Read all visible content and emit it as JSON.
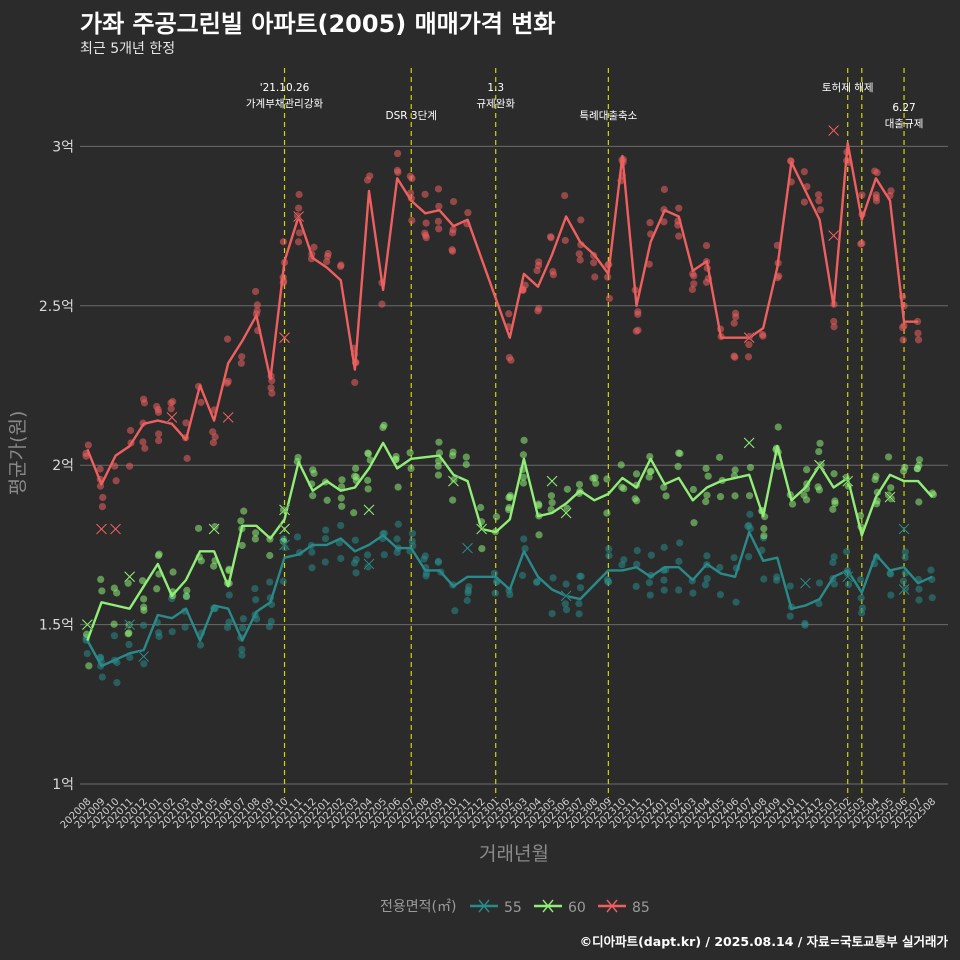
{
  "header": {
    "title": "가좌 주공그린빌 아파트(2005) 매매가격 변화",
    "subtitle": "최근 5개년 한정"
  },
  "caption": "©디아파트(dapt.kr) / 2025.08.14 / 자료=국토교통부 실거래가",
  "colors": {
    "background": "#2b2b2b",
    "grid": "#6b6b6b",
    "event_line": "#d4d400",
    "s55": "#2a8a8a",
    "s60": "#90ee78",
    "s85": "#ee6060"
  },
  "chart_data": {
    "type": "line",
    "xlabel": "거래년월",
    "ylabel": "평균가(원)",
    "ylim": [
      0.95,
      3.3
    ],
    "y_ticks": [
      {
        "value": 1.0,
        "label": "1억"
      },
      {
        "value": 1.5,
        "label": "1.5억"
      },
      {
        "value": 2.0,
        "label": "2억"
      },
      {
        "value": 2.5,
        "label": "2.5억"
      },
      {
        "value": 3.0,
        "label": "3억"
      }
    ],
    "grid": true,
    "legend": {
      "title": "전용면적(㎡)",
      "position": "bottom",
      "entries": [
        "55",
        "60",
        "85"
      ]
    },
    "categories": [
      "202008",
      "202009",
      "202010",
      "202011",
      "202012",
      "202101",
      "202102",
      "202103",
      "202104",
      "202105",
      "202106",
      "202107",
      "202108",
      "202109",
      "202110",
      "202111",
      "202112",
      "202201",
      "202202",
      "202203",
      "202204",
      "202205",
      "202206",
      "202207",
      "202208",
      "202209",
      "202210",
      "202211",
      "202212",
      "202301",
      "202302",
      "202303",
      "202304",
      "202305",
      "202306",
      "202307",
      "202308",
      "202309",
      "202310",
      "202311",
      "202312",
      "202401",
      "202402",
      "202403",
      "202404",
      "202405",
      "202406",
      "202407",
      "202408",
      "202409",
      "202410",
      "202411",
      "202412",
      "202501",
      "202502",
      "202503",
      "202504",
      "202505",
      "202506",
      "202507",
      "202508"
    ],
    "events": [
      {
        "x": 14,
        "label": "'21.10.26\n가계부채관리강화",
        "row": 0
      },
      {
        "x": 23,
        "label": "DSR 3단계",
        "row": 1
      },
      {
        "x": 29,
        "label": "1.3\n규제완화",
        "row": 0
      },
      {
        "x": 37,
        "label": "특례대출축소",
        "row": 1
      },
      {
        "x": 54,
        "label": "토허제 해제",
        "row": 0
      },
      {
        "x": 55,
        "label": "",
        "row": 0
      },
      {
        "x": 58,
        "label": "6.27\n대출규제",
        "row": 2
      }
    ],
    "series": [
      {
        "name": "55",
        "x": [
          0,
          1,
          2,
          3,
          4,
          5,
          6,
          7,
          8,
          9,
          10,
          11,
          12,
          13,
          14,
          15,
          16,
          17,
          18,
          19,
          20,
          21,
          22,
          23,
          24,
          25,
          26,
          27,
          29,
          30,
          31,
          32,
          33,
          34,
          35,
          37,
          38,
          39,
          40,
          41,
          42,
          43,
          44,
          45,
          46,
          47,
          48,
          49,
          50,
          51,
          52,
          53,
          54,
          55,
          56,
          57,
          58,
          59,
          60
        ],
        "values": [
          1.45,
          1.37,
          1.39,
          1.41,
          1.42,
          1.53,
          1.52,
          1.55,
          1.45,
          1.56,
          1.55,
          1.45,
          1.54,
          1.57,
          1.71,
          1.72,
          1.75,
          1.75,
          1.77,
          1.73,
          1.75,
          1.78,
          1.74,
          1.74,
          1.67,
          1.67,
          1.62,
          1.65,
          1.65,
          1.61,
          1.73,
          1.65,
          1.61,
          1.59,
          1.58,
          1.67,
          1.67,
          1.68,
          1.65,
          1.68,
          1.68,
          1.64,
          1.69,
          1.66,
          1.65,
          1.79,
          1.7,
          1.71,
          1.55,
          1.56,
          1.58,
          1.65,
          1.67,
          1.6,
          1.72,
          1.67,
          1.68,
          1.63,
          1.65
        ],
        "markers": [
          {
            "x": 0,
            "y": 1.5
          },
          {
            "x": 3,
            "y": 1.5
          },
          {
            "x": 4,
            "y": 1.4
          },
          {
            "x": 14,
            "y": 1.75
          },
          {
            "x": 20,
            "y": 1.69
          },
          {
            "x": 27,
            "y": 1.74
          },
          {
            "x": 34,
            "y": 1.59
          },
          {
            "x": 51,
            "y": 1.63
          },
          {
            "x": 54,
            "y": 1.65
          },
          {
            "x": 58,
            "y": 1.61
          },
          {
            "x": 58,
            "y": 1.8
          }
        ]
      },
      {
        "name": "60",
        "x": [
          0,
          1,
          2,
          3,
          4,
          5,
          6,
          7,
          8,
          9,
          10,
          11,
          12,
          13,
          14,
          15,
          16,
          17,
          18,
          19,
          20,
          21,
          22,
          23,
          25,
          26,
          27,
          28,
          29,
          30,
          31,
          32,
          33,
          34,
          35,
          36,
          37,
          38,
          39,
          40,
          41,
          42,
          43,
          44,
          45,
          46,
          47,
          48,
          49,
          50,
          51,
          52,
          53,
          54,
          55,
          56,
          57,
          58,
          59,
          60
        ],
        "values": [
          1.45,
          1.57,
          1.56,
          1.55,
          1.62,
          1.69,
          1.59,
          1.64,
          1.73,
          1.73,
          1.62,
          1.81,
          1.81,
          1.77,
          1.83,
          2.01,
          1.92,
          1.95,
          1.92,
          1.93,
          1.99,
          2.07,
          1.99,
          2.02,
          2.03,
          1.97,
          1.95,
          1.8,
          1.79,
          1.83,
          2.02,
          1.84,
          1.85,
          1.88,
          1.92,
          1.89,
          1.91,
          1.96,
          1.93,
          2.02,
          1.94,
          1.96,
          1.89,
          1.93,
          1.95,
          1.96,
          1.97,
          1.84,
          2.06,
          1.89,
          1.93,
          2.0,
          1.93,
          1.96,
          1.78,
          1.9,
          1.97,
          1.95,
          1.95,
          1.9
        ],
        "markers": [
          {
            "x": 0,
            "y": 1.5
          },
          {
            "x": 3,
            "y": 1.65
          },
          {
            "x": 9,
            "y": 1.8
          },
          {
            "x": 14,
            "y": 1.8
          },
          {
            "x": 14,
            "y": 1.86
          },
          {
            "x": 20,
            "y": 1.86
          },
          {
            "x": 26,
            "y": 1.95
          },
          {
            "x": 28,
            "y": 1.8
          },
          {
            "x": 33,
            "y": 1.95
          },
          {
            "x": 34,
            "y": 1.85
          },
          {
            "x": 47,
            "y": 2.07
          },
          {
            "x": 52,
            "y": 2.0
          },
          {
            "x": 54,
            "y": 1.95
          },
          {
            "x": 57,
            "y": 1.9
          }
        ]
      },
      {
        "name": "85",
        "x": [
          0,
          1,
          2,
          3,
          4,
          5,
          6,
          7,
          8,
          9,
          10,
          11,
          12,
          13,
          14,
          15,
          16,
          17,
          18,
          19,
          20,
          21,
          22,
          23,
          24,
          25,
          26,
          27,
          30,
          31,
          32,
          33,
          34,
          35,
          36,
          37,
          38,
          39,
          40,
          41,
          42,
          43,
          44,
          45,
          46,
          47,
          48,
          49,
          50,
          51,
          52,
          53,
          54,
          55,
          56,
          57,
          58,
          59
        ],
        "values": [
          2.05,
          1.94,
          2.03,
          2.06,
          2.13,
          2.14,
          2.13,
          2.08,
          2.25,
          2.14,
          2.32,
          2.39,
          2.47,
          2.27,
          2.64,
          2.78,
          2.65,
          2.62,
          2.58,
          2.3,
          2.86,
          2.55,
          2.9,
          2.83,
          2.79,
          2.8,
          2.75,
          2.77,
          2.4,
          2.6,
          2.56,
          2.66,
          2.78,
          2.7,
          2.66,
          2.6,
          2.97,
          2.5,
          2.7,
          2.8,
          2.78,
          2.61,
          2.64,
          2.4,
          2.4,
          2.4,
          2.43,
          2.62,
          2.95,
          2.86,
          2.77,
          2.5,
          3.01,
          2.77,
          2.9,
          2.83,
          2.45,
          2.45
        ],
        "markers": [
          {
            "x": 1,
            "y": 1.8
          },
          {
            "x": 2,
            "y": 1.8
          },
          {
            "x": 6,
            "y": 2.15
          },
          {
            "x": 10,
            "y": 2.15
          },
          {
            "x": 14,
            "y": 2.4
          },
          {
            "x": 15,
            "y": 2.78
          },
          {
            "x": 47,
            "y": 2.4
          },
          {
            "x": 53,
            "y": 3.05
          },
          {
            "x": 53,
            "y": 2.72
          }
        ]
      }
    ]
  }
}
